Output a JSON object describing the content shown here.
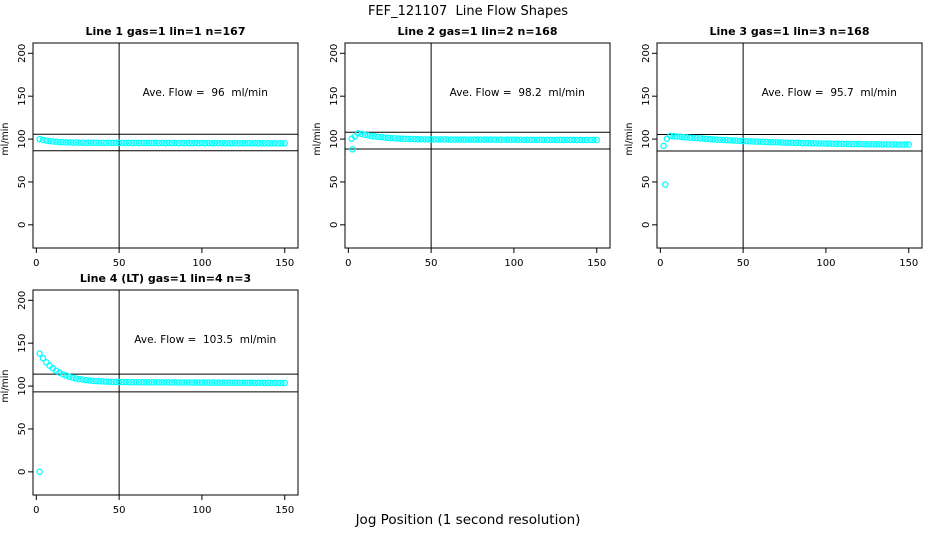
{
  "title": "FEF_121107  Line Flow Shapes",
  "xlabel": "Jog Position (1 second resolution)",
  "colors": {
    "points": "#00FFFF",
    "axis": "#000000",
    "background": "#FFFFFF"
  },
  "chart_data": [
    {
      "type": "scatter",
      "title": "Line 1 gas=1 lin=1 n=167",
      "ylabel": "ml/min",
      "annotation": "Ave. Flow =  96  ml/min",
      "ave_flow_ml_min": 96,
      "gas": 1,
      "lin": 1,
      "n": 167,
      "xlim": [
        -2,
        158
      ],
      "ylim": [
        -27,
        212
      ],
      "xticks": [
        0,
        50,
        100,
        150
      ],
      "yticks": [
        0,
        50,
        100,
        150,
        200
      ],
      "vline_x": 50,
      "hlines": [
        105.6,
        86.4
      ],
      "marker": "open-circle",
      "points": [
        [
          2,
          100.0
        ],
        [
          4,
          99.1
        ],
        [
          6,
          98.2
        ],
        [
          8,
          97.8
        ],
        [
          10,
          97.1
        ],
        [
          12,
          96.9
        ],
        [
          14,
          96.5
        ],
        [
          16,
          96.4
        ],
        [
          18,
          96.1
        ],
        [
          20,
          96.2
        ],
        [
          22,
          95.9
        ],
        [
          24,
          96.0
        ],
        [
          26,
          95.7
        ],
        [
          28,
          95.9
        ],
        [
          30,
          95.6
        ],
        [
          32,
          95.8
        ],
        [
          34,
          95.6
        ],
        [
          36,
          95.7
        ],
        [
          38,
          95.5
        ],
        [
          40,
          95.7
        ],
        [
          42,
          95.5
        ],
        [
          44,
          95.7
        ],
        [
          46,
          95.5
        ],
        [
          48,
          95.6
        ],
        [
          50,
          95.5
        ],
        [
          52,
          95.6
        ],
        [
          54,
          95.4
        ],
        [
          56,
          95.6
        ],
        [
          58,
          95.4
        ],
        [
          60,
          95.6
        ],
        [
          62,
          95.4
        ],
        [
          64,
          95.5
        ],
        [
          66,
          95.4
        ],
        [
          68,
          95.5
        ],
        [
          70,
          95.4
        ],
        [
          72,
          95.5
        ],
        [
          74,
          95.3
        ],
        [
          76,
          95.5
        ],
        [
          78,
          95.3
        ],
        [
          80,
          95.5
        ],
        [
          82,
          95.3
        ],
        [
          84,
          95.4
        ],
        [
          86,
          95.3
        ],
        [
          88,
          95.4
        ],
        [
          90,
          95.3
        ],
        [
          92,
          95.4
        ],
        [
          94,
          95.2
        ],
        [
          96,
          95.4
        ],
        [
          98,
          95.2
        ],
        [
          100,
          95.4
        ],
        [
          102,
          95.2
        ],
        [
          104,
          95.3
        ],
        [
          106,
          95.2
        ],
        [
          108,
          95.3
        ],
        [
          110,
          95.2
        ],
        [
          112,
          95.3
        ],
        [
          114,
          95.1
        ],
        [
          116,
          95.3
        ],
        [
          118,
          95.1
        ],
        [
          120,
          95.3
        ],
        [
          122,
          95.1
        ],
        [
          124,
          95.2
        ],
        [
          126,
          95.1
        ],
        [
          128,
          95.2
        ],
        [
          130,
          95.0
        ],
        [
          132,
          95.2
        ],
        [
          134,
          95.0
        ],
        [
          136,
          95.2
        ],
        [
          138,
          95.0
        ],
        [
          140,
          95.1
        ],
        [
          142,
          95.0
        ],
        [
          144,
          95.1
        ],
        [
          146,
          94.9
        ],
        [
          148,
          95.1
        ],
        [
          150,
          95.0
        ]
      ]
    },
    {
      "type": "scatter",
      "title": "Line 2 gas=1 lin=2 n=168",
      "ylabel": "ml/min",
      "annotation": "Ave. Flow =  98.2  ml/min",
      "ave_flow_ml_min": 98.2,
      "gas": 1,
      "lin": 2,
      "n": 168,
      "xlim": [
        -2,
        158
      ],
      "ylim": [
        -27,
        212
      ],
      "xticks": [
        0,
        50,
        100,
        150
      ],
      "yticks": [
        0,
        50,
        100,
        150,
        200
      ],
      "vline_x": 50,
      "hlines": [
        108.0,
        88.4
      ],
      "marker": "open-circle",
      "points": [
        [
          2,
          100.5
        ],
        [
          2.5,
          88.0
        ],
        [
          4,
          103.0
        ],
        [
          6,
          106.8
        ],
        [
          8,
          105.9
        ],
        [
          10,
          104.9
        ],
        [
          12,
          104.3
        ],
        [
          14,
          103.5
        ],
        [
          16,
          103.1
        ],
        [
          18,
          102.5
        ],
        [
          20,
          102.2
        ],
        [
          22,
          101.7
        ],
        [
          24,
          101.5
        ],
        [
          26,
          101.1
        ],
        [
          28,
          101.0
        ],
        [
          30,
          100.6
        ],
        [
          32,
          100.5
        ],
        [
          34,
          100.3
        ],
        [
          36,
          100.2
        ],
        [
          38,
          100.1
        ],
        [
          40,
          100.0
        ],
        [
          42,
          99.9
        ],
        [
          44,
          99.8
        ],
        [
          46,
          99.7
        ],
        [
          48,
          99.7
        ],
        [
          50,
          99.6
        ],
        [
          52,
          99.6
        ],
        [
          54,
          99.5
        ],
        [
          56,
          99.6
        ],
        [
          58,
          99.5
        ],
        [
          60,
          99.5
        ],
        [
          62,
          99.4
        ],
        [
          64,
          99.5
        ],
        [
          66,
          99.4
        ],
        [
          68,
          99.5
        ],
        [
          70,
          99.4
        ],
        [
          72,
          99.4
        ],
        [
          74,
          99.3
        ],
        [
          76,
          99.4
        ],
        [
          78,
          99.3
        ],
        [
          80,
          99.4
        ],
        [
          82,
          99.3
        ],
        [
          84,
          99.4
        ],
        [
          86,
          99.3
        ],
        [
          88,
          99.3
        ],
        [
          90,
          99.2
        ],
        [
          92,
          99.3
        ],
        [
          94,
          99.2
        ],
        [
          96,
          99.3
        ],
        [
          98,
          99.2
        ],
        [
          100,
          99.3
        ],
        [
          102,
          99.2
        ],
        [
          104,
          99.2
        ],
        [
          106,
          99.1
        ],
        [
          108,
          99.2
        ],
        [
          110,
          99.1
        ],
        [
          112,
          99.2
        ],
        [
          114,
          99.1
        ],
        [
          116,
          99.2
        ],
        [
          118,
          99.1
        ],
        [
          120,
          99.1
        ],
        [
          122,
          99.0
        ],
        [
          124,
          99.1
        ],
        [
          126,
          99.0
        ],
        [
          128,
          99.1
        ],
        [
          130,
          99.0
        ],
        [
          132,
          99.1
        ],
        [
          134,
          99.0
        ],
        [
          136,
          99.0
        ],
        [
          138,
          98.9
        ],
        [
          140,
          99.0
        ],
        [
          142,
          98.9
        ],
        [
          144,
          99.0
        ],
        [
          146,
          98.9
        ],
        [
          148,
          99.0
        ],
        [
          150,
          98.9
        ]
      ]
    },
    {
      "type": "scatter",
      "title": "Line 3 gas=1 lin=3 n=168",
      "ylabel": "ml/min",
      "annotation": "Ave. Flow =  95.7  ml/min",
      "ave_flow_ml_min": 95.7,
      "gas": 1,
      "lin": 3,
      "n": 168,
      "xlim": [
        -2,
        158
      ],
      "ylim": [
        -27,
        212
      ],
      "xticks": [
        0,
        50,
        100,
        150
      ],
      "yticks": [
        0,
        50,
        100,
        150,
        200
      ],
      "vline_x": 50,
      "hlines": [
        105.3,
        86.1
      ],
      "marker": "open-circle",
      "points": [
        [
          2,
          92.0
        ],
        [
          3,
          47.0
        ],
        [
          4,
          100.5
        ],
        [
          6,
          103.7
        ],
        [
          8,
          103.4
        ],
        [
          10,
          102.9
        ],
        [
          12,
          102.7
        ],
        [
          14,
          102.2
        ],
        [
          16,
          102.0
        ],
        [
          18,
          101.6
        ],
        [
          20,
          101.3
        ],
        [
          22,
          101.1
        ],
        [
          24,
          100.8
        ],
        [
          26,
          100.5
        ],
        [
          28,
          100.2
        ],
        [
          30,
          99.9
        ],
        [
          32,
          99.7
        ],
        [
          34,
          99.4
        ],
        [
          36,
          99.2
        ],
        [
          38,
          98.9
        ],
        [
          40,
          98.8
        ],
        [
          42,
          98.5
        ],
        [
          44,
          98.4
        ],
        [
          46,
          98.1
        ],
        [
          48,
          98.0
        ],
        [
          50,
          97.7
        ],
        [
          52,
          97.6
        ],
        [
          54,
          97.3
        ],
        [
          56,
          97.3
        ],
        [
          58,
          97.0
        ],
        [
          60,
          97.0
        ],
        [
          62,
          96.7
        ],
        [
          64,
          96.7
        ],
        [
          66,
          96.5
        ],
        [
          68,
          96.4
        ],
        [
          70,
          96.2
        ],
        [
          72,
          96.2
        ],
        [
          74,
          95.9
        ],
        [
          76,
          95.9
        ],
        [
          78,
          95.7
        ],
        [
          80,
          95.7
        ],
        [
          82,
          95.5
        ],
        [
          84,
          95.5
        ],
        [
          86,
          95.3
        ],
        [
          88,
          95.3
        ],
        [
          90,
          95.2
        ],
        [
          92,
          95.1
        ],
        [
          94,
          95.0
        ],
        [
          96,
          94.9
        ],
        [
          98,
          94.9
        ],
        [
          100,
          94.8
        ],
        [
          102,
          94.7
        ],
        [
          104,
          94.6
        ],
        [
          106,
          94.6
        ],
        [
          108,
          94.5
        ],
        [
          110,
          94.4
        ],
        [
          112,
          94.4
        ],
        [
          114,
          94.3
        ],
        [
          116,
          94.2
        ],
        [
          118,
          94.2
        ],
        [
          120,
          94.2
        ],
        [
          122,
          94.1
        ],
        [
          124,
          94.0
        ],
        [
          126,
          94.0
        ],
        [
          128,
          93.9
        ],
        [
          130,
          93.9
        ],
        [
          132,
          93.9
        ],
        [
          134,
          93.8
        ],
        [
          136,
          93.8
        ],
        [
          138,
          93.8
        ],
        [
          140,
          93.7
        ],
        [
          142,
          93.7
        ],
        [
          144,
          93.6
        ],
        [
          146,
          93.6
        ],
        [
          148,
          93.6
        ],
        [
          150,
          93.6
        ]
      ]
    },
    {
      "type": "scatter",
      "title": "Line 4 (LT) gas=1 lin=4 n=3",
      "ylabel": "ml/min",
      "annotation": "Ave. Flow =  103.5  ml/min",
      "ave_flow_ml_min": 103.5,
      "gas": 1,
      "lin": 4,
      "n": 3,
      "xlim": [
        -2,
        158
      ],
      "ylim": [
        -27,
        212
      ],
      "xticks": [
        0,
        50,
        100,
        150
      ],
      "yticks": [
        0,
        50,
        100,
        150,
        200
      ],
      "vline_x": 50,
      "hlines": [
        113.9,
        93.2
      ],
      "marker": "open-circle",
      "points": [
        [
          2,
          0.0
        ],
        [
          2,
          138.0
        ],
        [
          4,
          132.4
        ],
        [
          6,
          127.7
        ],
        [
          8,
          123.8
        ],
        [
          10,
          120.6
        ],
        [
          12,
          117.9
        ],
        [
          14,
          115.6
        ],
        [
          16,
          113.7
        ],
        [
          18,
          112.2
        ],
        [
          20,
          110.9
        ],
        [
          22,
          109.8
        ],
        [
          24,
          108.8
        ],
        [
          26,
          108.1
        ],
        [
          28,
          107.5
        ],
        [
          30,
          106.9
        ],
        [
          32,
          106.5
        ],
        [
          34,
          106.1
        ],
        [
          36,
          105.8
        ],
        [
          38,
          105.6
        ],
        [
          40,
          105.4
        ],
        [
          42,
          105.2
        ],
        [
          44,
          105.0
        ],
        [
          46,
          104.9
        ],
        [
          48,
          104.8
        ],
        [
          50,
          104.7
        ],
        [
          52,
          104.7
        ],
        [
          54,
          104.6
        ],
        [
          56,
          104.6
        ],
        [
          58,
          104.5
        ],
        [
          60,
          104.5
        ],
        [
          62,
          104.5
        ],
        [
          64,
          104.4
        ],
        [
          66,
          104.5
        ],
        [
          68,
          104.4
        ],
        [
          70,
          104.4
        ],
        [
          72,
          104.3
        ],
        [
          74,
          104.4
        ],
        [
          76,
          104.3
        ],
        [
          78,
          104.3
        ],
        [
          80,
          104.3
        ],
        [
          82,
          104.2
        ],
        [
          84,
          104.3
        ],
        [
          86,
          104.2
        ],
        [
          88,
          104.2
        ],
        [
          90,
          104.2
        ],
        [
          92,
          104.1
        ],
        [
          94,
          104.2
        ],
        [
          96,
          104.1
        ],
        [
          98,
          104.1
        ],
        [
          100,
          104.1
        ],
        [
          102,
          104.0
        ],
        [
          104,
          104.1
        ],
        [
          106,
          104.0
        ],
        [
          108,
          104.0
        ],
        [
          110,
          104.0
        ],
        [
          112,
          103.9
        ],
        [
          114,
          104.0
        ],
        [
          116,
          103.9
        ],
        [
          118,
          103.9
        ],
        [
          120,
          103.9
        ],
        [
          122,
          103.8
        ],
        [
          124,
          103.9
        ],
        [
          126,
          103.8
        ],
        [
          128,
          103.8
        ],
        [
          130,
          103.8
        ],
        [
          132,
          103.7
        ],
        [
          134,
          103.8
        ],
        [
          136,
          103.7
        ],
        [
          138,
          103.7
        ],
        [
          140,
          103.7
        ],
        [
          142,
          103.6
        ],
        [
          144,
          103.7
        ],
        [
          146,
          103.6
        ],
        [
          148,
          103.6
        ],
        [
          150,
          103.6
        ]
      ]
    }
  ]
}
